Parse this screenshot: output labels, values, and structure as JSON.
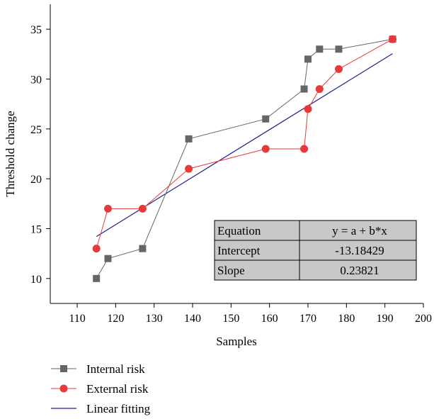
{
  "chart_data": {
    "type": "line",
    "xlabel": "Samples",
    "ylabel": "Threshold change",
    "xlim": [
      103,
      200
    ],
    "ylim": [
      7.5,
      37.5
    ],
    "xticks": [
      110,
      120,
      130,
      140,
      150,
      160,
      170,
      180,
      190,
      200
    ],
    "yticks": [
      10,
      15,
      20,
      25,
      30,
      35
    ],
    "legend_position": "bottom-left, below plot",
    "series": [
      {
        "name": "Internal risk",
        "color": "#666666",
        "marker": "square",
        "x": [
          115,
          118,
          127,
          139,
          159,
          169,
          170,
          173,
          178,
          192
        ],
        "y": [
          10,
          12,
          13,
          24,
          26,
          29,
          32,
          33,
          33,
          34
        ]
      },
      {
        "name": "External risk",
        "color": "#e8393a",
        "marker": "circle",
        "x": [
          115,
          118,
          127,
          139,
          159,
          169,
          170,
          173,
          178,
          192
        ],
        "y": [
          13,
          17,
          17,
          21,
          23,
          23,
          27,
          29,
          31,
          34
        ]
      },
      {
        "name": "Linear fitting",
        "color": "#1f1f8f",
        "marker": "none",
        "x": [
          115,
          192
        ],
        "y": [
          14.21,
          32.55
        ]
      }
    ],
    "stats_table": {
      "rows": [
        [
          "Equation",
          "y = a + b*x"
        ],
        [
          "Intercept",
          "-13.18429"
        ],
        [
          "Slope",
          "0.23821"
        ]
      ],
      "background": "#c8c8c8"
    }
  }
}
